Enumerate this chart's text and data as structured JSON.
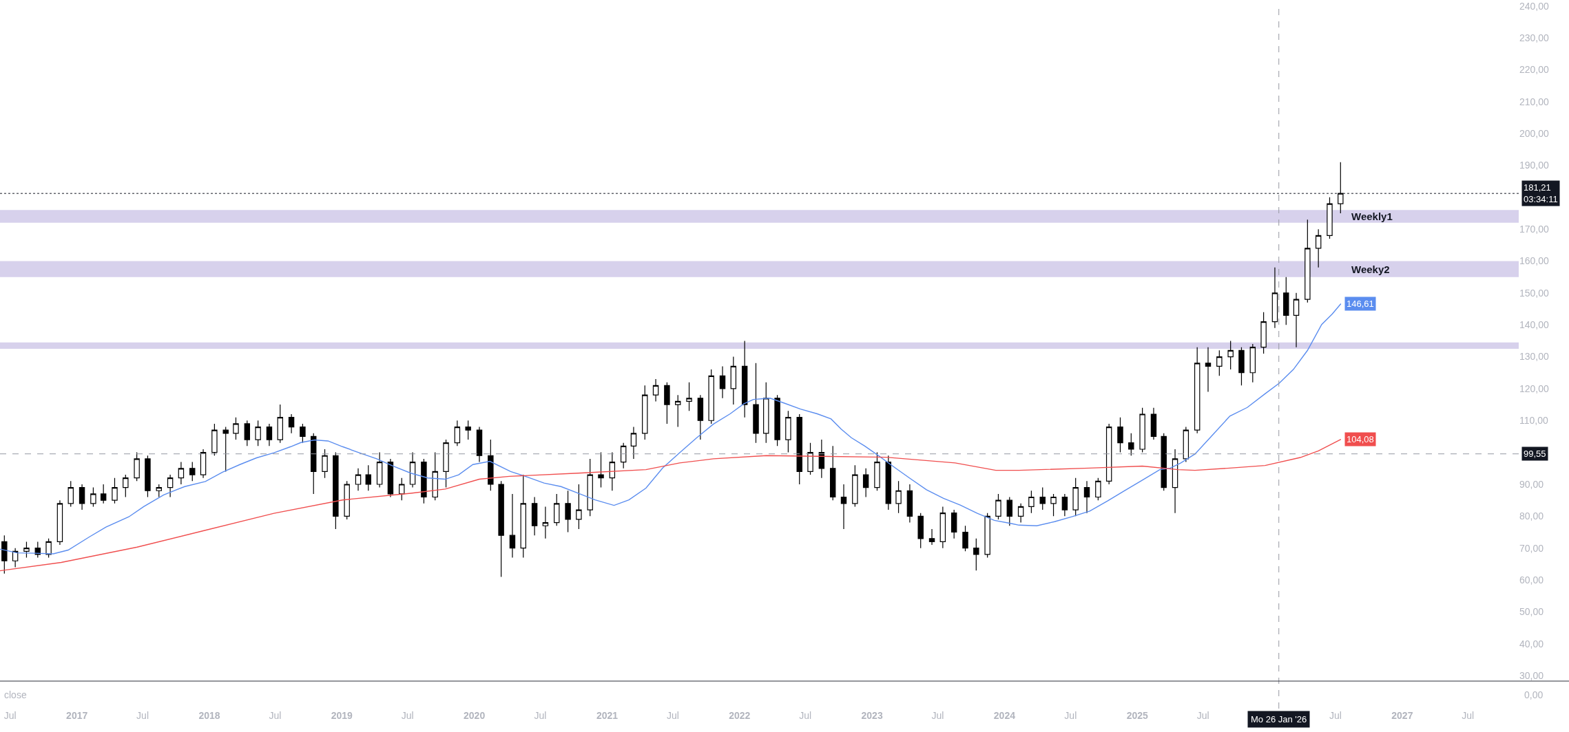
{
  "chart_data": {
    "type": "candlestick",
    "color": "#000000",
    "x": [
      "2016-06-15",
      "2016-07-15",
      "2016-08-15",
      "2016-09-15",
      "2016-10-15",
      "2016-11-15",
      "2016-12-15",
      "2017-01-15",
      "2017-02-15",
      "2017-03-15",
      "2017-04-15",
      "2017-05-15",
      "2017-06-15",
      "2017-07-15",
      "2017-08-15",
      "2017-09-15",
      "2017-10-15",
      "2017-11-15",
      "2017-12-15",
      "2018-01-15",
      "2018-02-15",
      "2018-03-15",
      "2018-04-15",
      "2018-05-15",
      "2018-06-15",
      "2018-07-15",
      "2018-08-15",
      "2018-09-15",
      "2018-10-15",
      "2018-11-15",
      "2018-12-15",
      "2019-01-15",
      "2019-02-15",
      "2019-03-15",
      "2019-04-15",
      "2019-05-15",
      "2019-06-15",
      "2019-07-15",
      "2019-08-15",
      "2019-09-15",
      "2019-10-15",
      "2019-11-15",
      "2019-12-15",
      "2020-01-15",
      "2020-02-15",
      "2020-03-15",
      "2020-04-15",
      "2020-05-15",
      "2020-06-15",
      "2020-07-15",
      "2020-08-15",
      "2020-09-15",
      "2020-10-15",
      "2020-11-15",
      "2020-12-15",
      "2021-01-15",
      "2021-02-15",
      "2021-03-15",
      "2021-04-15",
      "2021-05-15",
      "2021-06-15",
      "2021-07-15",
      "2021-08-15",
      "2021-09-15",
      "2021-10-15",
      "2021-11-15",
      "2021-12-15",
      "2022-01-15",
      "2022-02-15",
      "2022-03-15",
      "2022-04-15",
      "2022-05-15",
      "2022-06-15",
      "2022-07-15",
      "2022-08-15",
      "2022-09-15",
      "2022-10-15",
      "2022-11-15",
      "2022-12-15",
      "2023-01-15",
      "2023-02-15",
      "2023-03-15",
      "2023-04-15",
      "2023-05-15",
      "2023-06-15",
      "2023-07-15",
      "2023-08-15",
      "2023-09-15",
      "2023-10-15",
      "2023-11-15",
      "2023-12-15",
      "2024-01-15",
      "2024-02-15",
      "2024-03-15",
      "2024-04-15",
      "2024-05-15",
      "2024-06-15",
      "2024-07-15",
      "2024-08-15",
      "2024-09-15",
      "2024-10-15",
      "2024-11-15",
      "2024-12-15",
      "2025-01-15",
      "2025-02-15",
      "2025-03-15",
      "2025-04-15",
      "2025-05-15",
      "2025-06-15",
      "2025-07-15",
      "2025-08-15",
      "2025-09-15",
      "2025-10-15",
      "2025-11-15",
      "2025-12-15",
      "2026-01-15",
      "2026-02-15",
      "2026-03-15",
      "2026-04-15",
      "2026-05-15",
      "2026-06-15",
      "2026-07-15"
    ],
    "ohlc": [
      [
        72,
        74,
        62,
        66
      ],
      [
        66,
        70,
        64,
        69
      ],
      [
        69,
        72,
        67,
        70
      ],
      [
        70,
        72,
        67,
        68
      ],
      [
        68,
        73,
        67,
        72
      ],
      [
        72,
        85,
        71,
        84
      ],
      [
        84,
        91,
        83,
        89
      ],
      [
        89,
        90,
        82,
        84
      ],
      [
        84,
        89,
        83,
        87
      ],
      [
        87,
        90,
        84,
        85
      ],
      [
        85,
        92,
        84,
        89
      ],
      [
        89,
        93,
        86,
        92
      ],
      [
        92,
        100,
        91,
        98
      ],
      [
        98,
        99,
        86,
        88
      ],
      [
        88,
        90,
        86,
        89
      ],
      [
        89,
        93,
        86,
        92
      ],
      [
        92,
        97,
        90,
        95
      ],
      [
        95,
        97,
        91,
        93
      ],
      [
        93,
        101,
        92,
        100
      ],
      [
        100,
        109,
        99,
        107
      ],
      [
        107,
        108,
        94,
        106
      ],
      [
        106,
        111,
        104,
        109
      ],
      [
        109,
        110,
        102,
        104
      ],
      [
        104,
        110,
        102,
        108
      ],
      [
        108,
        109,
        102,
        104
      ],
      [
        104,
        115,
        103,
        111
      ],
      [
        111,
        112,
        106,
        108
      ],
      [
        108,
        109,
        103,
        105
      ],
      [
        105,
        106,
        87,
        94
      ],
      [
        94,
        101,
        92,
        99
      ],
      [
        99,
        100,
        76,
        80
      ],
      [
        80,
        91,
        79,
        90
      ],
      [
        90,
        95,
        88,
        93
      ],
      [
        93,
        96,
        88,
        90
      ],
      [
        90,
        100,
        89,
        97
      ],
      [
        97,
        98,
        86,
        87
      ],
      [
        87,
        92,
        85,
        90
      ],
      [
        90,
        100,
        89,
        97
      ],
      [
        97,
        98,
        84,
        86
      ],
      [
        86,
        100,
        85,
        94
      ],
      [
        94,
        104,
        89,
        103
      ],
      [
        103,
        110,
        102,
        108
      ],
      [
        108,
        110,
        104,
        107
      ],
      [
        107,
        108,
        97,
        99
      ],
      [
        99,
        104,
        88,
        90
      ],
      [
        90,
        91,
        61,
        74
      ],
      [
        74,
        87,
        67,
        70
      ],
      [
        70,
        93,
        67,
        84
      ],
      [
        84,
        86,
        74,
        77
      ],
      [
        77,
        83,
        73,
        78
      ],
      [
        78,
        87,
        77,
        84
      ],
      [
        84,
        88,
        75,
        79
      ],
      [
        79,
        90,
        76,
        82
      ],
      [
        82,
        98,
        80,
        93
      ],
      [
        93,
        100,
        89,
        92
      ],
      [
        92,
        100,
        88,
        97
      ],
      [
        97,
        103,
        95,
        102
      ],
      [
        102,
        108,
        98,
        106
      ],
      [
        106,
        121,
        104,
        118
      ],
      [
        118,
        123,
        116,
        121
      ],
      [
        121,
        122,
        109,
        115
      ],
      [
        115,
        118,
        108,
        116
      ],
      [
        116,
        122,
        113,
        117
      ],
      [
        117,
        118,
        104,
        110
      ],
      [
        110,
        126,
        109,
        124
      ],
      [
        124,
        127,
        117,
        120
      ],
      [
        120,
        130,
        115,
        127
      ],
      [
        127,
        135,
        111,
        115
      ],
      [
        115,
        128,
        103,
        106
      ],
      [
        106,
        122,
        103,
        117
      ],
      [
        117,
        118,
        102,
        104
      ],
      [
        104,
        113,
        100,
        111
      ],
      [
        111,
        112,
        90,
        94
      ],
      [
        94,
        103,
        93,
        100
      ],
      [
        100,
        104,
        92,
        95
      ],
      [
        95,
        102,
        85,
        86
      ],
      [
        86,
        90,
        76,
        84
      ],
      [
        84,
        96,
        83,
        93
      ],
      [
        93,
        95,
        86,
        89
      ],
      [
        89,
        100,
        88,
        97
      ],
      [
        97,
        99,
        82,
        84
      ],
      [
        84,
        91,
        81,
        88
      ],
      [
        88,
        90,
        78,
        80
      ],
      [
        80,
        81,
        70,
        73
      ],
      [
        73,
        76,
        71,
        72
      ],
      [
        72,
        83,
        70,
        81
      ],
      [
        81,
        82,
        73,
        75
      ],
      [
        75,
        77,
        69,
        70
      ],
      [
        70,
        73,
        63,
        68
      ],
      [
        68,
        81,
        67,
        80
      ],
      [
        80,
        87,
        79,
        85
      ],
      [
        85,
        86,
        77,
        80
      ],
      [
        80,
        84,
        78,
        83
      ],
      [
        83,
        88,
        81,
        86
      ],
      [
        86,
        89,
        82,
        84
      ],
      [
        84,
        87,
        80,
        86
      ],
      [
        86,
        87,
        80,
        82
      ],
      [
        82,
        92,
        80,
        89
      ],
      [
        89,
        91,
        81,
        86
      ],
      [
        86,
        92,
        85,
        91
      ],
      [
        91,
        109,
        90,
        108
      ],
      [
        108,
        111,
        100,
        103
      ],
      [
        103,
        106,
        99,
        101
      ],
      [
        101,
        114,
        100,
        112
      ],
      [
        112,
        114,
        104,
        105
      ],
      [
        105,
        106,
        88,
        89
      ],
      [
        89,
        101,
        81,
        98
      ],
      [
        98,
        108,
        97,
        107
      ],
      [
        107,
        133,
        106,
        128
      ],
      [
        128,
        133,
        119,
        127
      ],
      [
        127,
        132,
        124,
        130
      ],
      [
        130,
        135,
        126,
        132
      ],
      [
        132,
        133,
        121,
        125
      ],
      [
        125,
        134,
        122,
        133
      ],
      [
        133,
        144,
        131,
        141
      ],
      [
        141,
        158,
        139,
        150
      ],
      [
        150,
        155,
        140,
        143
      ],
      [
        143,
        150,
        133,
        148
      ],
      [
        148,
        173,
        147,
        164
      ],
      [
        164,
        170,
        158,
        168
      ],
      [
        168,
        180,
        167,
        178
      ],
      [
        178,
        191,
        175,
        181.21
      ]
    ],
    "series": [
      {
        "type": "line",
        "color": "#5b8def",
        "x": [
          "2016-06-03",
          "2016-07-20",
          "2016-09-06",
          "2016-10-28",
          "2016-12-08",
          "2017-02-04",
          "2017-03-22",
          "2017-05-24",
          "2017-07-04",
          "2017-08-28",
          "2017-10-25",
          "2017-12-21",
          "2018-02-06",
          "2018-03-26",
          "2018-05-11",
          "2018-06-28",
          "2018-08-13",
          "2018-09-10",
          "2018-10-18",
          "2018-11-24",
          "2019-01-03",
          "2019-02-18",
          "2019-04-07",
          "2019-05-23",
          "2019-07-10",
          "2019-08-26",
          "2019-10-13",
          "2019-11-19",
          "2019-12-28",
          "2020-02-13",
          "2020-04-10",
          "2020-05-26",
          "2020-07-11",
          "2020-08-27",
          "2020-10-13",
          "2020-11-29",
          "2021-01-20",
          "2021-03-02",
          "2021-04-18",
          "2021-06-03",
          "2021-07-20",
          "2021-09-05",
          "2021-10-21",
          "2021-12-06",
          "2022-01-12",
          "2022-02-08",
          "2022-03-26",
          "2022-05-03",
          "2022-06-18",
          "2022-08-03",
          "2022-09-10",
          "2022-10-08",
          "2022-11-05",
          "2022-12-12",
          "2023-01-21",
          "2023-02-27",
          "2023-04-14",
          "2023-05-31",
          "2023-07-17",
          "2023-09-01",
          "2023-10-18",
          "2023-12-04",
          "2024-01-20",
          "2024-02-10",
          "2024-03-30",
          "2024-05-18",
          "2024-07-06",
          "2024-08-23",
          "2024-10-11",
          "2024-11-28",
          "2025-01-15",
          "2025-03-04",
          "2025-04-02",
          "2025-05-01",
          "2025-06-09",
          "2025-07-27",
          "2025-09-13",
          "2025-10-31",
          "2025-12-19",
          "2026-01-27",
          "2026-03-07",
          "2026-04-15",
          "2026-05-24",
          "2026-06-22",
          "2026-07-16"
        ],
        "values": [
          69.7,
          68.5,
          68.4,
          68.2,
          69.4,
          73.5,
          76.6,
          79.8,
          83.0,
          86.7,
          89.3,
          90.9,
          93.8,
          96.2,
          98.3,
          99.9,
          101.8,
          103.1,
          103.9,
          103.6,
          101.8,
          99.9,
          98.0,
          95.7,
          93.5,
          92.0,
          91.6,
          93.0,
          96.2,
          97.2,
          94.0,
          92.3,
          90.4,
          89.3,
          87.2,
          85.1,
          83.4,
          85.1,
          88.8,
          95.1,
          99.9,
          104.6,
          108.9,
          112.1,
          115.2,
          116.6,
          117.0,
          115.5,
          113.6,
          112.1,
          110.5,
          107.3,
          104.6,
          102.0,
          98.8,
          95.7,
          92.0,
          88.3,
          85.6,
          83.5,
          80.9,
          78.7,
          77.7,
          77.2,
          77.0,
          78.3,
          79.9,
          81.6,
          84.8,
          88.1,
          91.3,
          94.6,
          95.1,
          96.7,
          99.5,
          105.4,
          111.4,
          114.1,
          118.4,
          121.7,
          126.0,
          132.0,
          140.1,
          143.4,
          146.61
        ],
        "value_labels": [
          null,
          null,
          null,
          null,
          null,
          null,
          null,
          null,
          null,
          null,
          null,
          null,
          null,
          null,
          null,
          null,
          null,
          null,
          null,
          null,
          null,
          null,
          null,
          null,
          null,
          null,
          null,
          null,
          null,
          null,
          null,
          null,
          null,
          null,
          null,
          null,
          null,
          null,
          null,
          null,
          null,
          null,
          null,
          null,
          null,
          null,
          null,
          null,
          null,
          null,
          null,
          null,
          null,
          null,
          null,
          null,
          null,
          null,
          null,
          null,
          null,
          null,
          null,
          null,
          null,
          null,
          null,
          null,
          null,
          null,
          null,
          null,
          null,
          null,
          null,
          null,
          null,
          null,
          null,
          null,
          null,
          null,
          null,
          null,
          "146,61"
        ]
      },
      {
        "type": "line",
        "color": "#f04e4e",
        "x": [
          "2016-06-03",
          "2016-11-19",
          "2017-06-16",
          "2017-12-21",
          "2018-06-28",
          "2019-01-03",
          "2019-07-10",
          "2019-10-13",
          "2020-01-15",
          "2020-04-07",
          "2020-10-13",
          "2021-04-18",
          "2021-07-20",
          "2021-10-21",
          "2022-03-16",
          "2022-08-04",
          "2023-02-09",
          "2023-08-18",
          "2023-12-08",
          "2024-02-10",
          "2024-08-23",
          "2025-01-15",
          "2025-04-23",
          "2025-06-09",
          "2025-09-13",
          "2025-12-19",
          "2026-03-26",
          "2026-05-15",
          "2026-07-16"
        ],
        "values": [
          62.9,
          65.5,
          70.3,
          75.6,
          80.9,
          85.1,
          87.2,
          88.5,
          91.6,
          92.5,
          93.5,
          94.6,
          96.7,
          98.0,
          99.0,
          98.8,
          98.5,
          96.7,
          94.4,
          94.4,
          95.1,
          95.7,
          94.6,
          94.4,
          95.1,
          95.9,
          98.4,
          100.5,
          104.08
        ],
        "value_labels": [
          null,
          null,
          null,
          null,
          null,
          null,
          null,
          null,
          null,
          null,
          null,
          null,
          null,
          null,
          null,
          null,
          null,
          null,
          null,
          null,
          null,
          null,
          null,
          null,
          null,
          null,
          null,
          null,
          "104,08"
        ]
      }
    ],
    "xlim": [
      "2016-06-03",
      "2027-11-18"
    ],
    "xticks": [
      {
        "value": "2016-07-01",
        "label": "Jul"
      },
      {
        "value": "2017-01-01",
        "label": "2017"
      },
      {
        "value": "2017-07-01",
        "label": "Jul"
      },
      {
        "value": "2018-01-01",
        "label": "2018"
      },
      {
        "value": "2018-07-01",
        "label": "Jul"
      },
      {
        "value": "2019-01-01",
        "label": "2019"
      },
      {
        "value": "2019-07-01",
        "label": "Jul"
      },
      {
        "value": "2020-01-01",
        "label": "2020"
      },
      {
        "value": "2020-07-01",
        "label": "Jul"
      },
      {
        "value": "2021-01-01",
        "label": "2021"
      },
      {
        "value": "2021-07-01",
        "label": "Jul"
      },
      {
        "value": "2022-01-01",
        "label": "2022"
      },
      {
        "value": "2022-07-01",
        "label": "Jul"
      },
      {
        "value": "2023-01-01",
        "label": "2023"
      },
      {
        "value": "2023-07-01",
        "label": "Jul"
      },
      {
        "value": "2024-01-01",
        "label": "2024"
      },
      {
        "value": "2024-07-01",
        "label": "Jul"
      },
      {
        "value": "2025-01-01",
        "label": "2025"
      },
      {
        "value": "2025-07-01",
        "label": "Jul"
      },
      {
        "value": "2026-07-01",
        "label": "Jul"
      },
      {
        "value": "2027-01-01",
        "label": "2027"
      },
      {
        "value": "2027-07-01",
        "label": "Jul"
      }
    ],
    "ylim": [
      28.3,
      241
    ],
    "yticks": [
      {
        "value": 30,
        "label": "30,00"
      },
      {
        "value": 40,
        "label": "40,00"
      },
      {
        "value": 50,
        "label": "50,00"
      },
      {
        "value": 60,
        "label": "60,00"
      },
      {
        "value": 70,
        "label": "70,00"
      },
      {
        "value": 80,
        "label": "80,00"
      },
      {
        "value": 90,
        "label": "90,00"
      },
      {
        "value": 110,
        "label": "110,00"
      },
      {
        "value": 120,
        "label": "120,00"
      },
      {
        "value": 130,
        "label": "130,00"
      },
      {
        "value": 140,
        "label": "140,00"
      },
      {
        "value": 150,
        "label": "150,00"
      },
      {
        "value": 160,
        "label": "160,00"
      },
      {
        "value": 170,
        "label": "170,00"
      },
      {
        "value": 190,
        "label": "190,00"
      },
      {
        "value": 200,
        "label": "200,00"
      },
      {
        "value": 210,
        "label": "210,00"
      },
      {
        "value": 220,
        "label": "220,00"
      },
      {
        "value": 230,
        "label": "230,00"
      },
      {
        "value": 240,
        "label": "240,00"
      }
    ],
    "ref_lines": [
      {
        "axis": "y",
        "value": 181.21,
        "label": "181,21\n03:34:11",
        "line_style": "dotted",
        "color": "#131722"
      },
      {
        "axis": "y",
        "value": 99.55,
        "label": "99,55",
        "line_style": "dashed",
        "color": "#9598a1"
      },
      {
        "axis": "x",
        "value": "2026-01-26",
        "label": "Mo 26 Jan '26",
        "line_style": "dashed",
        "color": "#9598a1"
      }
    ],
    "bands": [
      {
        "axis": "y",
        "from": 172,
        "to": 176,
        "label": "Weekly1",
        "color": "#d7d1ec"
      },
      {
        "axis": "y",
        "from": 155,
        "to": 160,
        "label": "Weeky2",
        "color": "#d7d1ec"
      },
      {
        "axis": "y",
        "from": 132.5,
        "to": 134.5,
        "color": "#d7d1ec"
      }
    ],
    "annotations": [
      "close",
      "0,00"
    ]
  }
}
